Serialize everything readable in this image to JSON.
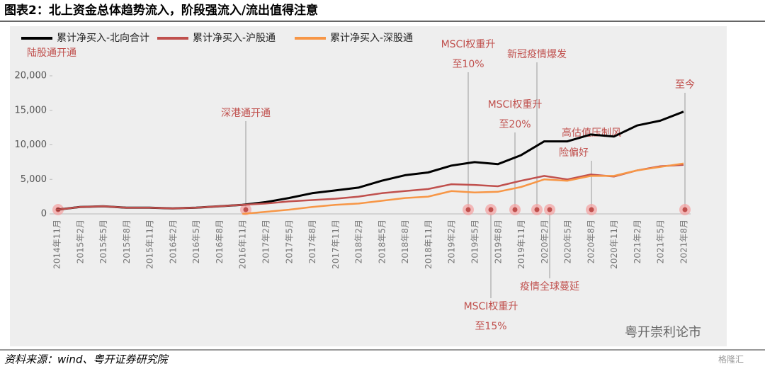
{
  "chart_data": {
    "type": "line",
    "title": "图表2：北上资金总体趋势流入，阶段强流入/流出值得注意",
    "source": "资料来源：wind、粤开证券研究院",
    "watermark": "粤开崇利论市",
    "corner_logo": "格隆汇",
    "categories": [
      "2014年11月",
      "2015年2月",
      "2015年5月",
      "2015年8月",
      "2015年11月",
      "2016年2月",
      "2016年5月",
      "2016年8月",
      "2016年11月",
      "2017年2月",
      "2017年5月",
      "2017年8月",
      "2017年11月",
      "2018年2月",
      "2018年5月",
      "2018年8月",
      "2018年11月",
      "2019年2月",
      "2019年5月",
      "2019年8月",
      "2019年11月",
      "2020年2月",
      "2020年5月",
      "2020年8月",
      "2020年11月",
      "2021年2月",
      "2021年5月",
      "2021年8月"
    ],
    "series": [
      {
        "name": "累计净买入-北向合计",
        "color": "#000000",
        "values": [
          600,
          1000,
          1100,
          900,
          900,
          800,
          900,
          1100,
          1300,
          1700,
          2300,
          3000,
          3400,
          3800,
          4800,
          5600,
          6000,
          7000,
          7500,
          7200,
          8500,
          10500,
          10500,
          11500,
          11200,
          12800,
          13500,
          14800
        ]
      },
      {
        "name": "累计净买入-沪股通",
        "color": "#c0504d",
        "values": [
          600,
          1000,
          1100,
          900,
          900,
          800,
          900,
          1100,
          1300,
          1500,
          1800,
          2000,
          2200,
          2500,
          3000,
          3300,
          3600,
          4300,
          4200,
          4000,
          4800,
          5500,
          5000,
          5700,
          5400,
          6300,
          6900,
          7100
        ]
      },
      {
        "name": "累计净买入-深股通",
        "color": "#f79646",
        "values": [
          null,
          null,
          null,
          null,
          null,
          null,
          null,
          null,
          0,
          300,
          600,
          1000,
          1300,
          1500,
          1900,
          2300,
          2500,
          3300,
          3100,
          3200,
          3900,
          5000,
          4800,
          5500,
          5500,
          6300,
          6800,
          7300
        ]
      }
    ],
    "ylim": [
      0,
      20000
    ],
    "yticks": [
      0,
      {
        "value": 5000,
        "label": "5,000"
      },
      {
        "value": 10000,
        "label": "10,000"
      },
      {
        "value": 15000,
        "label": "15,000"
      },
      {
        "value": 20000,
        "label": "20,000"
      }
    ],
    "annotations": [
      {
        "text": [
          "陆股通开通"
        ]
      },
      {
        "text": [
          "深港通开通"
        ]
      },
      {
        "text": [
          "MSCI权重升",
          "至10%"
        ]
      },
      {
        "text": [
          "MSCI权重升",
          "至15%"
        ]
      },
      {
        "text": [
          "MSCI权重升",
          "至20%"
        ]
      },
      {
        "text": [
          "新冠疫情爆发"
        ]
      },
      {
        "text": [
          "疫情全球蔓延"
        ]
      },
      {
        "text": [
          "高估值压制风",
          "险偏好"
        ]
      },
      {
        "text": [
          "至今"
        ]
      }
    ]
  }
}
